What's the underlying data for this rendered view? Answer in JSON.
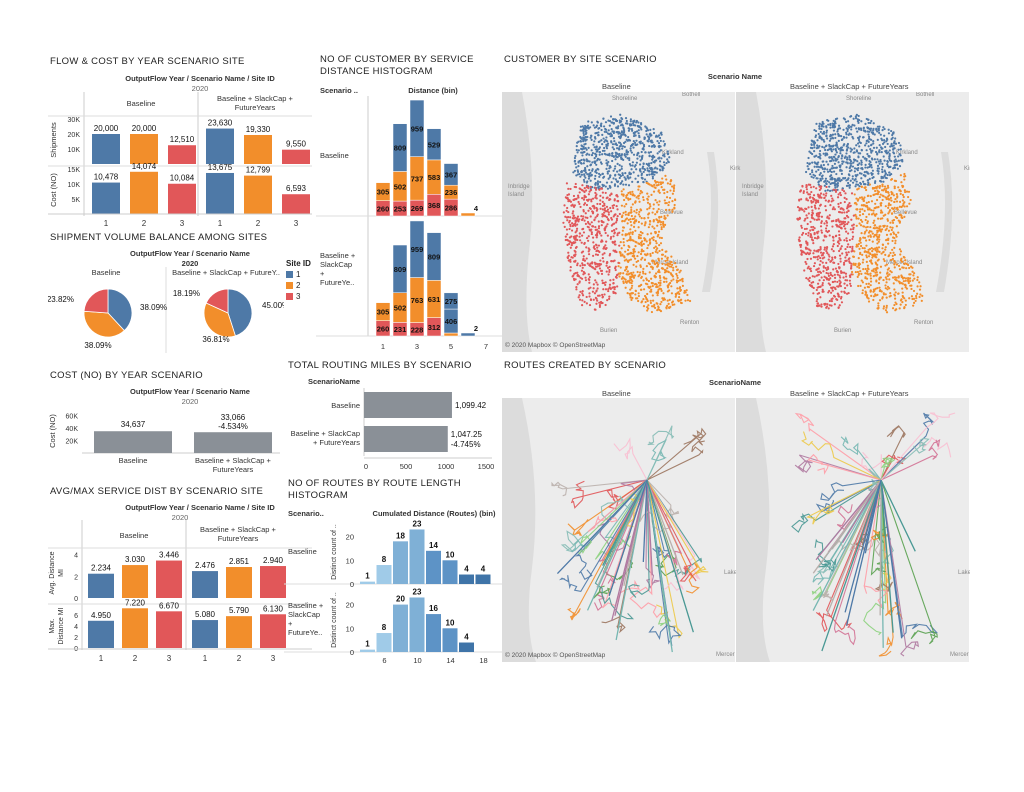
{
  "colors": {
    "site1": "#4e79a7",
    "site2": "#f28e2b",
    "site3": "#e15759",
    "gray": "#8a9097",
    "blue1": "#a0cbe8",
    "blue2": "#7fb0d6",
    "blue3": "#5d93c6",
    "blue4": "#3f74a8"
  },
  "flow_cost": {
    "title": "FLOW & COST BY YEAR SCENARIO SITE",
    "header": "OutputFlow Year  /  Scenario Name  /  Site ID",
    "year": "2020",
    "scenarios": [
      "Baseline",
      "Baseline + SlackCap + FutureYears"
    ],
    "row1_label": "Shipments",
    "row2_label": "Cost (NO)",
    "row1_ticks": [
      "30K",
      "20K",
      "10K"
    ],
    "row2_ticks": [
      "15K",
      "10K",
      "5K"
    ],
    "sites": [
      "1",
      "2",
      "3"
    ]
  },
  "volume_balance": {
    "title": "SHIPMENT VOLUME BALANCE AMONG SITES",
    "header": "OutputFlow Year  /  Scenario Name",
    "year": "2020",
    "scenarios": [
      "Baseline",
      "Baseline + SlackCap + FutureY.."
    ],
    "legend_title": "Site ID",
    "legend": [
      "1",
      "2",
      "3"
    ]
  },
  "cost_year": {
    "title": "COST (NO) BY YEAR SCENARIO",
    "header": "OutputFlow Year  /  Scenario Name",
    "year": "2020",
    "ylabel": "Cost (NO)",
    "ticks": [
      "60K",
      "40K",
      "20K"
    ],
    "scenarios": [
      "Baseline",
      "Baseline + SlackCap +\nFutureYears"
    ],
    "labels": [
      "34,637",
      "33,066"
    ],
    "pct": "-4.534%"
  },
  "service_dist": {
    "title": "AVG/MAX SERVICE DIST BY SCENARIO SITE",
    "header": "OutputFlow Year  /  Scenario Name  /  Site ID",
    "year": "2020",
    "scenarios": [
      "Baseline",
      "Baseline + SlackCap +\nFutureYears"
    ],
    "row1_label": "Avg. Distance\nMI",
    "row2_label": "Max.\nDistance MI",
    "ticks1": [
      "4",
      "2",
      "0"
    ],
    "ticks2": [
      "6",
      "4",
      "2",
      "0"
    ],
    "sites": [
      "1",
      "2",
      "3"
    ]
  },
  "hist_customer": {
    "title": "NO OF CUSTOMER BY SERVICE\nDISTANCE HISTOGRAM",
    "col_header": "Scenario ..",
    "header": "Distance (bin)",
    "rows": [
      "Baseline",
      "Baseline +\nSlackCap\n+\nFutureYe.."
    ],
    "xticks": [
      "1",
      "3",
      "5",
      "7"
    ]
  },
  "routing_miles": {
    "title": "TOTAL ROUTING MILES BY SCENARIO",
    "col_header": "ScenarioName",
    "rows": [
      "Baseline",
      "Baseline + SlackCap\n+ FutureYears"
    ],
    "labels": [
      "1,099.42",
      "1,047.25"
    ],
    "pct": "-4.745%",
    "xticks": [
      "0",
      "500",
      "1000",
      "1500"
    ]
  },
  "routes_hist": {
    "title": "NO OF ROUTES BY ROUTE LENGTH\nHISTOGRAM",
    "col_header": "Scenario..",
    "header": "Cumulated Distance (Routes) (bin)",
    "ylabel": "Distinct count of ..",
    "rows": [
      "Baseline",
      "Baseline +\nSlackCap\n+\nFutureYe.."
    ],
    "yticks": [
      "20",
      "10",
      "0"
    ],
    "xticks": [
      "6",
      "10",
      "14",
      "18"
    ]
  },
  "customer_map": {
    "title": "CUSTOMER BY SITE SCENARIO",
    "header": "Scenario Name",
    "scenarios": [
      "Baseline",
      "Baseline + SlackCap + FutureYears"
    ],
    "attribution": "© 2020 Mapbox © OpenStreetMap",
    "places": [
      "Shoreline",
      "Bothell",
      "Kirkland",
      "Kirk",
      "Bellevue",
      "Mercer Island",
      "Renton",
      "Burien",
      "Inbridge\nIsland"
    ]
  },
  "routes_map": {
    "title": "ROUTES CREATED BY SCENARIO",
    "header": "ScenarioName",
    "scenarios": [
      "Baseline",
      "Baseline + SlackCap + FutureYears"
    ],
    "attribution": "© 2020 Mapbox © OpenStreetMap",
    "places": [
      "Mercer",
      "Lake"
    ]
  },
  "chart_data": [
    {
      "type": "bar",
      "title": "FLOW & COST BY YEAR SCENARIO SITE",
      "categories": [
        "1",
        "2",
        "3"
      ],
      "series": [
        {
          "name": "Baseline",
          "metric": "Shipments",
          "values": [
            20000,
            20000,
            12510
          ],
          "labels": [
            "20,000",
            "20,000",
            "12,510"
          ]
        },
        {
          "name": "Baseline + SlackCap + FutureYears",
          "metric": "Shipments",
          "values": [
            23630,
            19330,
            9550
          ],
          "labels": [
            "23,630",
            "19,330",
            "9,550"
          ]
        },
        {
          "name": "Baseline",
          "metric": "Cost (NO)",
          "values": [
            10478,
            14074,
            10084
          ],
          "labels": [
            "10,478",
            "14,074",
            "10,084"
          ]
        },
        {
          "name": "Baseline + SlackCap + FutureYears",
          "metric": "Cost (NO)",
          "values": [
            13675,
            12799,
            6593
          ],
          "labels": [
            "13,675",
            "12,799",
            "6,593"
          ]
        }
      ],
      "ylim_shipments": [
        0,
        32000
      ],
      "ylim_cost": [
        0,
        16000
      ]
    },
    {
      "type": "pie",
      "title": "SHIPMENT VOLUME BALANCE AMONG SITES",
      "series": [
        {
          "name": "Baseline",
          "values": [
            38.09,
            38.09,
            23.82
          ],
          "labels": [
            "38.09%",
            "38.09%",
            "23.82%"
          ]
        },
        {
          "name": "Baseline + SlackCap + FutureY..",
          "values": [
            45.0,
            36.81,
            18.19
          ],
          "labels": [
            "45.00%",
            "36.81%",
            "18.19%"
          ]
        }
      ]
    },
    {
      "type": "bar",
      "title": "COST (NO) BY YEAR SCENARIO",
      "categories": [
        "Baseline",
        "Baseline + SlackCap + FutureYears"
      ],
      "values": [
        34637,
        33066
      ],
      "ylim": [
        0,
        70000
      ]
    },
    {
      "type": "bar",
      "title": "AVG/MAX SERVICE DIST BY SCENARIO SITE",
      "categories": [
        "1",
        "2",
        "3"
      ],
      "series": [
        {
          "name": "Baseline",
          "metric": "Avg. Distance MI",
          "values": [
            2.234,
            3.03,
            3.446
          ],
          "labels": [
            "2.234",
            "3.030",
            "3.446"
          ]
        },
        {
          "name": "Baseline + SlackCap + FutureYears",
          "metric": "Avg. Distance MI",
          "values": [
            2.476,
            2.851,
            2.94
          ],
          "labels": [
            "2.476",
            "2.851",
            "2.940"
          ]
        },
        {
          "name": "Baseline",
          "metric": "Max. Distance MI",
          "values": [
            4.95,
            7.22,
            6.67
          ],
          "labels": [
            "4.950",
            "7.220",
            "6.670"
          ]
        },
        {
          "name": "Baseline + SlackCap + FutureYears",
          "metric": "Max. Distance MI",
          "values": [
            5.08,
            5.79,
            6.13
          ],
          "labels": [
            "5.080",
            "5.790",
            "6.130"
          ]
        }
      ],
      "ylim_avg": [
        0,
        4.6
      ],
      "ylim_max": [
        0,
        8
      ]
    },
    {
      "type": "bar",
      "title": "NO OF CUSTOMER BY SERVICE DISTANCE HISTOGRAM",
      "x": [
        1,
        2,
        3,
        4,
        5,
        6
      ],
      "series": [
        {
          "name": "Baseline",
          "site": "3",
          "values": [
            260,
            253,
            269,
            368,
            286,
            0
          ],
          "labels": [
            "260",
            "253",
            "269",
            "368",
            "286",
            ""
          ]
        },
        {
          "name": "Baseline",
          "site": "2",
          "values": [
            305,
            502,
            737,
            583,
            236,
            4
          ],
          "labels": [
            "305",
            "502",
            "737",
            "583",
            "236",
            "4"
          ]
        },
        {
          "name": "Baseline",
          "site": "1",
          "values": [
            0,
            809,
            959,
            529,
            367,
            0
          ],
          "labels": [
            "",
            "809",
            "959",
            "529",
            "367",
            ""
          ]
        },
        {
          "name": "Baseline + SlackCap + FutureYears",
          "site": "3",
          "values": [
            260,
            231,
            228,
            312,
            0,
            0
          ],
          "labels": [
            "260",
            "231",
            "228",
            "312",
            "",
            ""
          ]
        },
        {
          "name": "Baseline + SlackCap + FutureYears",
          "site": "2",
          "values": [
            305,
            502,
            763,
            631,
            2,
            0
          ],
          "labels": [
            "305",
            "502",
            "763",
            "631",
            "",
            ""
          ]
        },
        {
          "name": "Baseline + SlackCap + FutureYears",
          "site": "1",
          "values": [
            0,
            809,
            959,
            809,
            406,
            0
          ],
          "labels": [
            "",
            "809",
            "959",
            "809",
            "406",
            ""
          ]
        },
        {
          "name": "Baseline + SlackCap + FutureYears",
          "site": "extra",
          "values": [
            0,
            0,
            0,
            0,
            275,
            2
          ],
          "labels": [
            "",
            "",
            "",
            "",
            "275",
            "2"
          ]
        }
      ],
      "xlim": [
        0,
        7.5
      ]
    },
    {
      "type": "bar",
      "title": "TOTAL ROUTING MILES BY SCENARIO",
      "categories": [
        "Baseline",
        "Baseline + SlackCap + FutureYears"
      ],
      "values": [
        1099.42,
        1047.25
      ],
      "xlim": [
        0,
        1500
      ]
    },
    {
      "type": "bar",
      "title": "NO OF ROUTES BY ROUTE LENGTH HISTOGRAM",
      "x": [
        5,
        6,
        8,
        10,
        12,
        14,
        16,
        18
      ],
      "series": [
        {
          "name": "Baseline",
          "values": [
            1,
            8,
            18,
            23,
            14,
            10,
            4,
            4
          ],
          "labels": [
            "1",
            "8",
            "18",
            "23",
            "14",
            "10",
            "4",
            "4"
          ]
        },
        {
          "name": "Baseline + SlackCap + FutureYears",
          "values": [
            1,
            8,
            20,
            23,
            16,
            10,
            4,
            0
          ],
          "labels": [
            "1",
            "8",
            "20",
            "23",
            "16",
            "10",
            "4",
            ""
          ]
        }
      ],
      "ylim": [
        0,
        27
      ]
    }
  ]
}
